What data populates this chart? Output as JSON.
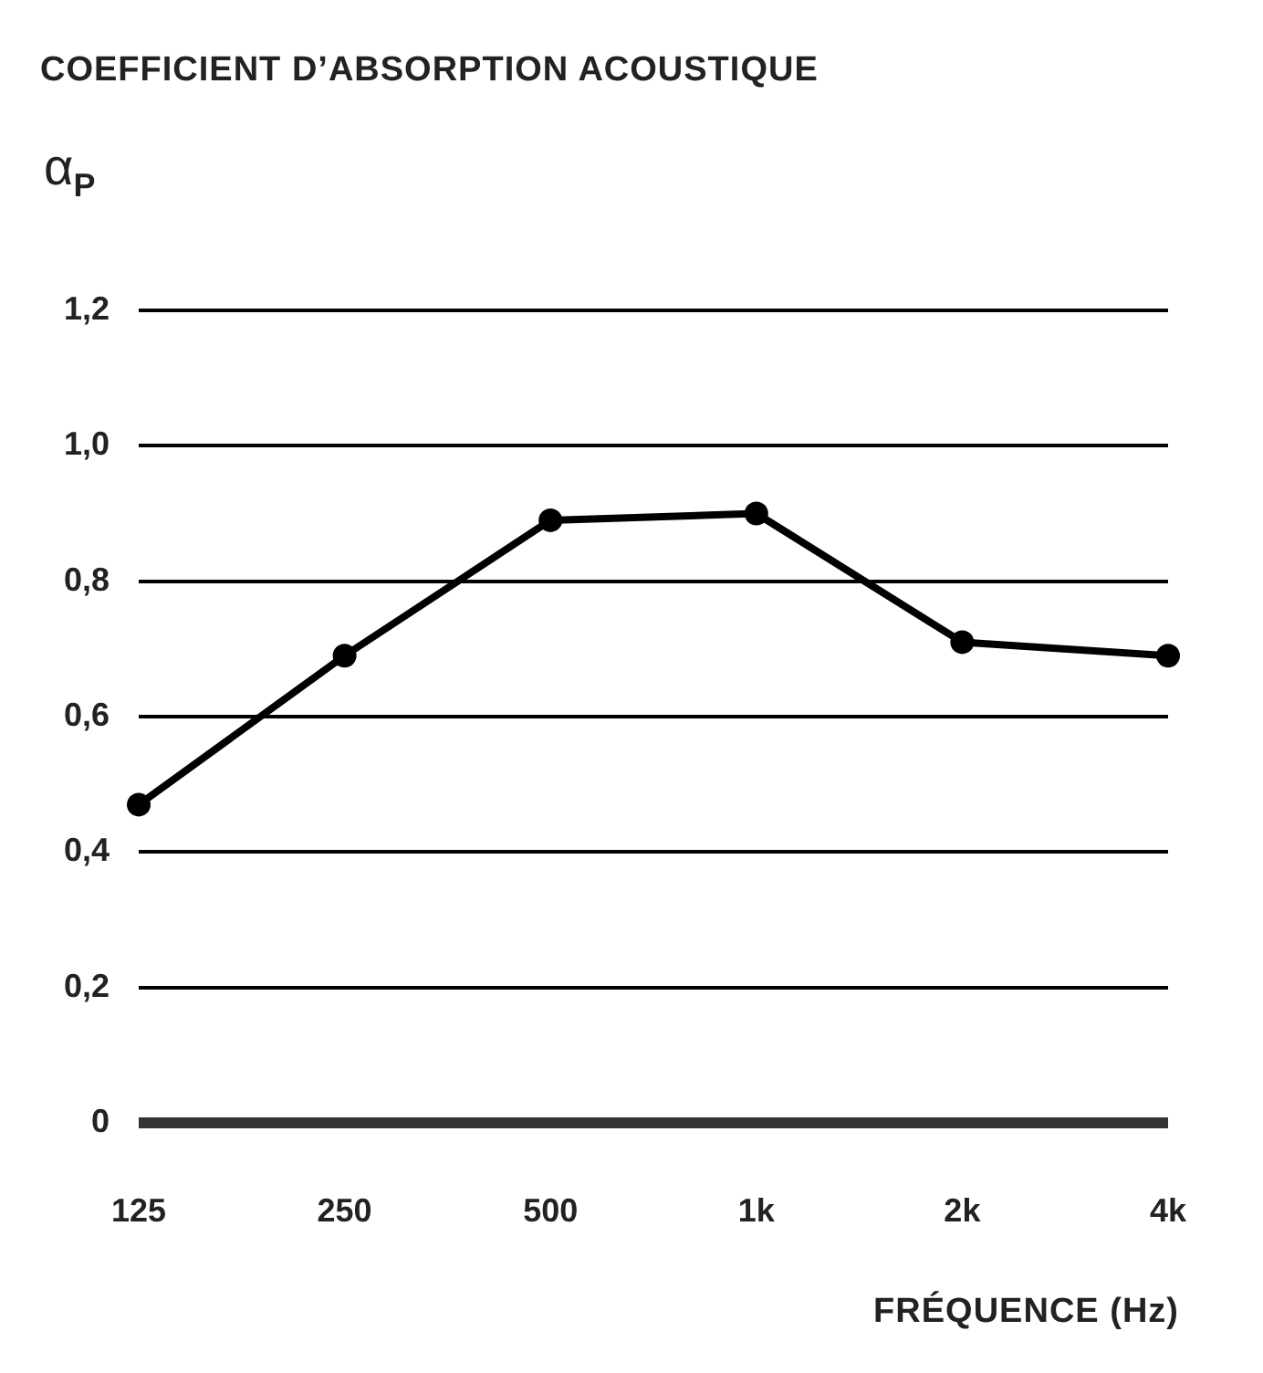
{
  "chart_data": {
    "type": "line",
    "title": "COEFFICIENT D’ABSORPTION ACOUSTIQUE",
    "ylabel": "α$_{P}$",
    "xlabel": "FRÉQUENCE (Hz)",
    "categories": [
      "125",
      "250",
      "500",
      "1k",
      "2k",
      "4k"
    ],
    "values": [
      0.47,
      0.69,
      0.89,
      0.9,
      0.71,
      0.69
    ],
    "color": "#000000",
    "ylim": [
      0,
      1.2
    ],
    "yticks": [
      0,
      {
        "value": 0.2,
        "label": "0,2"
      },
      {
        "value": 0.4,
        "label": "0,4"
      },
      {
        "value": 0.6,
        "label": "0,6"
      },
      {
        "value": 0.8,
        "label": "0,8"
      },
      {
        "value": 1.0,
        "label": "1,0"
      },
      {
        "value": 1.2,
        "label": "1,2"
      }
    ],
    "grid": "y",
    "marker": "circle",
    "line_style": "solid"
  }
}
